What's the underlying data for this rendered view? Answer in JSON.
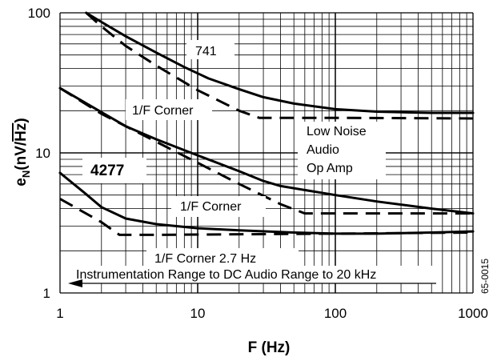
{
  "chart_data": {
    "type": "line",
    "xlabel": "F (Hz)",
    "ylabel_main": "e",
    "ylabel_sub": "N",
    "ylabel_units_pre": "(nV/",
    "ylabel_units_rad": "Hz",
    "ylabel_units_post": ")",
    "x_scale": "log",
    "y_scale": "log",
    "xlim": [
      1,
      1000
    ],
    "ylim": [
      1,
      100
    ],
    "x_ticks": [
      {
        "value": 1,
        "label": "1"
      },
      {
        "value": 10,
        "label": "10"
      },
      {
        "value": 100,
        "label": "100"
      },
      {
        "value": 1000,
        "label": "1000"
      }
    ],
    "y_ticks": [
      {
        "value": 1,
        "label": "1"
      },
      {
        "value": 10,
        "label": "10"
      },
      {
        "value": 100,
        "label": "100"
      }
    ],
    "grid": true,
    "series": [
      {
        "name": "741",
        "style": "solid",
        "x": [
          1.55,
          2,
          3,
          5,
          8,
          12,
          20,
          30,
          50,
          100,
          200,
          500,
          1000
        ],
        "y": [
          100,
          86,
          68,
          52,
          41,
          34,
          28.5,
          25,
          22.5,
          20.5,
          19.7,
          19.3,
          19.3
        ]
      },
      {
        "style": "dashed",
        "x": [
          1.55,
          2,
          3,
          5,
          10,
          20,
          28,
          40,
          100,
          1000
        ],
        "y": [
          100,
          80,
          58,
          42,
          28,
          20,
          17.8,
          17.8,
          17.8,
          17.6
        ]
      },
      {
        "name": "4277",
        "style": "solid",
        "x": [
          1,
          1.5,
          2,
          3,
          5,
          10,
          20,
          30,
          40,
          100,
          200,
          500,
          1000
        ],
        "y": [
          29,
          23,
          19.5,
          15.5,
          12.5,
          9.6,
          7.4,
          6.3,
          5.8,
          5,
          4.5,
          4,
          3.7
        ]
      },
      {
        "style": "dashed",
        "x": [
          1,
          2,
          5,
          10,
          20,
          40,
          60,
          100,
          1000
        ],
        "y": [
          29,
          19,
          12,
          8.5,
          6,
          4.3,
          3.7,
          3.7,
          3.7
        ]
      },
      {
        "style": "solid",
        "x": [
          1,
          1.5,
          2,
          3,
          5,
          10,
          20,
          50,
          100,
          200,
          500,
          1000
        ],
        "y": [
          7.2,
          5.2,
          4.1,
          3.4,
          3.1,
          2.9,
          2.8,
          2.7,
          2.65,
          2.65,
          2.7,
          2.75
        ]
      },
      {
        "style": "dashed",
        "x": [
          1,
          2,
          2.7,
          5,
          100,
          1000
        ],
        "y": [
          4.7,
          3.2,
          2.6,
          2.6,
          2.65,
          2.7
        ]
      }
    ],
    "annotations": [
      {
        "text": "741",
        "bold": false
      },
      {
        "text": "1/F Corner",
        "bold": false
      },
      {
        "text": "Low Noise",
        "bold": false
      },
      {
        "text": "Audio",
        "bold": false
      },
      {
        "text": "Op Amp",
        "bold": false
      },
      {
        "text": "4277",
        "bold": true
      },
      {
        "text": "1/F Corner",
        "bold": false
      },
      {
        "text": "1/F Corner 2.7 Hz",
        "bold": false
      },
      {
        "text": "Instrumentation Range to DC Audio Range to 20 kHz",
        "bold": false
      }
    ],
    "figure_code": "65-0015"
  }
}
